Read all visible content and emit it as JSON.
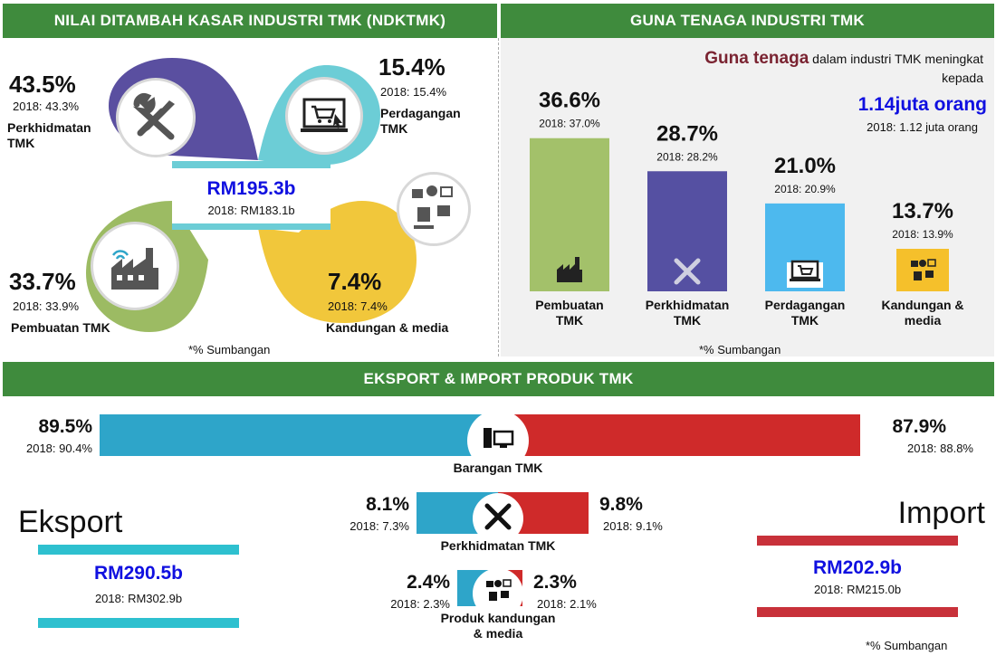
{
  "colors": {
    "header_green": "#3f8b3d",
    "blue_dark": "#5a4fa0",
    "olive": "#9cbb63",
    "teal": "#6ccdd6",
    "yellow": "#f1c73b",
    "navy_text": "#1010e0",
    "maroon": "#7a2331",
    "export_blue": "#2ea5c9",
    "import_red": "#cf2a2a",
    "bar_green": "#a3c16a",
    "bar_purple": "#5550a2",
    "bar_cyan": "#4db9ee",
    "bar_yellow": "#f5c02b"
  },
  "ndktmk": {
    "title": "NILAI DITAMBAH KASAR INDUSTRI TMK (NDKTMK)",
    "total": "RM195.3b",
    "total_prev": "2018: RM183.1b",
    "segments": [
      {
        "pct": "43.5%",
        "prev": "2018: 43.3%",
        "label": "Perkhidmatan TMK",
        "icon": "tools-icon"
      },
      {
        "pct": "15.4%",
        "prev": "2018: 15.4%",
        "label": "Perdagangan TMK",
        "icon": "laptop-cart-icon"
      },
      {
        "pct": "33.7%",
        "prev": "2018: 33.9%",
        "label": "Pembuatan TMK",
        "icon": "factory-icon"
      },
      {
        "pct": "7.4%",
        "prev": "2018: 7.4%",
        "label": "Kandungan & media",
        "icon": "media-icon"
      }
    ],
    "footnote": "*% Sumbangan"
  },
  "guna_tenaga": {
    "title": "GUNA TENAGA INDUSTRI TMK",
    "note_highlight": "Guna tenaga",
    "note_rest": "dalam industri TMK meningkat kepada",
    "total": "1.14juta orang",
    "total_prev": "2018: 1.12 juta orang",
    "footnote": "*% Sumbangan"
  },
  "eksport_import": {
    "title": "EKSPORT & IMPORT PRODUK TMK",
    "rows": [
      {
        "label": "Barangan TMK",
        "export": "89.5%",
        "export_prev": "2018: 90.4%",
        "import": "87.9%",
        "import_prev": "2018: 88.8%",
        "icon": "computer-icon"
      },
      {
        "label": "Perkhidmatan TMK",
        "export": "8.1%",
        "export_prev": "2018: 7.3%",
        "import": "9.8%",
        "import_prev": "2018: 9.1%",
        "icon": "tools-icon"
      },
      {
        "label": "Produk kandungan & media",
        "export": "2.4%",
        "export_prev": "2018: 2.3%",
        "import": "2.3%",
        "import_prev": "2018: 2.1%",
        "icon": "media-icon"
      }
    ],
    "export_label": "Eksport",
    "export_total": "RM290.5b",
    "export_prev": "2018: RM302.9b",
    "import_label": "Import",
    "import_total": "RM202.9b",
    "import_prev": "2018: RM215.0b",
    "footnote": "*% Sumbangan"
  },
  "chart_data": [
    {
      "type": "bar",
      "title": "GUNA TENAGA INDUSTRI TMK",
      "categories": [
        "Pembuatan TMK",
        "Perkhidmatan TMK",
        "Perdagangan TMK",
        "Kandungan & media"
      ],
      "values": [
        36.6,
        28.7,
        21.0,
        13.7
      ],
      "value_labels": [
        "36.6%",
        "28.7%",
        "21.0%",
        "13.7%"
      ],
      "prev_labels": [
        "2018: 37.0%",
        "2018: 28.2%",
        "2018: 20.9%",
        "2018: 13.9%"
      ],
      "colors": [
        "#a3c16a",
        "#5550a2",
        "#4db9ee",
        "#f5c02b"
      ],
      "icons": [
        "factory-icon",
        "tools-icon",
        "laptop-cart-icon",
        "media-icon"
      ],
      "ylim": [
        0,
        40
      ]
    },
    {
      "type": "bar",
      "title": "EKSPORT & IMPORT PRODUK TMK",
      "categories": [
        "Barangan TMK",
        "Perkhidmatan TMK",
        "Produk kandungan & media"
      ],
      "series": [
        {
          "name": "Eksport",
          "values": [
            89.5,
            8.1,
            2.4
          ]
        },
        {
          "name": "Import",
          "values": [
            87.9,
            9.8,
            2.3
          ]
        }
      ]
    },
    {
      "type": "pie",
      "title": "NILAI DITAMBAH KASAR INDUSTRI TMK (NDKTMK)",
      "categories": [
        "Perkhidmatan TMK",
        "Perdagangan TMK",
        "Pembuatan TMK",
        "Kandungan & media"
      ],
      "values": [
        43.5,
        15.4,
        33.7,
        7.4
      ]
    }
  ]
}
